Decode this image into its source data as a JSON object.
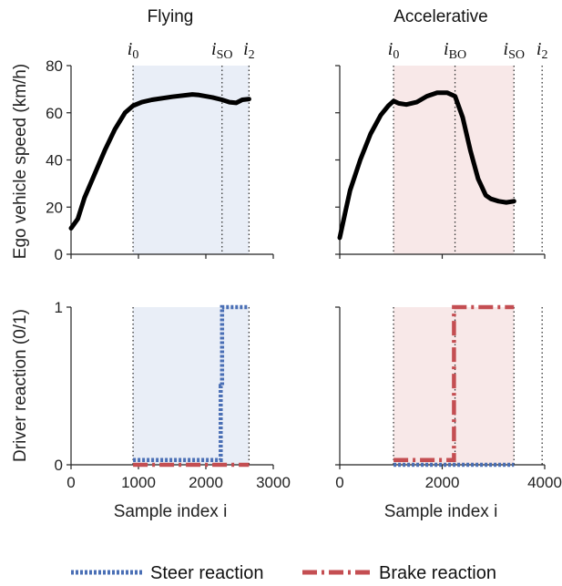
{
  "colors": {
    "speed_line": "#000000",
    "steer": "#4a6fb5",
    "brake": "#c44e52",
    "flying_shade": "#e9eef7",
    "accel_shade": "#f8e8e8",
    "event_line": "#333333"
  },
  "chart_data": [
    {
      "type": "line",
      "title": "Flying",
      "xlabel": "",
      "ylabel": "Ego vehicle speed (km/h)",
      "xlim": [
        0,
        3000
      ],
      "ylim": [
        0,
        80
      ],
      "y_ticks": [
        "0",
        "20",
        "40",
        "60",
        "80"
      ],
      "shaded_region": [
        920,
        2640
      ],
      "events": [
        {
          "base": "i",
          "sub": "0",
          "x": 920
        },
        {
          "base": "i",
          "sub": "SO",
          "x": 2240
        },
        {
          "base": "i",
          "sub": "2",
          "x": 2640
        }
      ],
      "series": [
        {
          "x": [
            0,
            100,
            200,
            350,
            500,
            650,
            800,
            920,
            1050,
            1200,
            1500,
            1800,
            1900,
            2100,
            2240,
            2350,
            2450,
            2540,
            2640
          ],
          "values": [
            11,
            15,
            24,
            34,
            44,
            53,
            60,
            63,
            64.5,
            65.5,
            66.8,
            67.8,
            67.5,
            66.5,
            65.5,
            64.5,
            64.2,
            65.5,
            65.8
          ]
        }
      ]
    },
    {
      "type": "line",
      "title": "Accelerative",
      "xlabel": "",
      "ylabel": "",
      "xlim": [
        0,
        4000
      ],
      "ylim": [
        0,
        80
      ],
      "y_ticks": [],
      "shaded_region": [
        1050,
        3400
      ],
      "events": [
        {
          "base": "i",
          "sub": "0",
          "x": 1050
        },
        {
          "base": "i",
          "sub": "BO",
          "x": 2250
        },
        {
          "base": "i",
          "sub": "SO",
          "x": 3400
        },
        {
          "base": "i",
          "sub": "2",
          "x": 3950
        }
      ],
      "series": [
        {
          "x": [
            0,
            100,
            200,
            400,
            600,
            800,
            950,
            1050,
            1150,
            1300,
            1500,
            1700,
            1900,
            2100,
            2250,
            2400,
            2550,
            2700,
            2850,
            2950,
            3100,
            3250,
            3400
          ],
          "values": [
            7,
            17,
            27,
            40,
            51,
            59,
            63,
            65,
            64,
            63.5,
            64.5,
            67,
            68.5,
            68.5,
            67,
            58,
            44,
            32,
            25,
            23.5,
            22.5,
            22,
            22.5
          ]
        }
      ]
    },
    {
      "type": "line",
      "title": "",
      "xlabel": "Sample index i",
      "ylabel": "Driver reaction (0/1)",
      "xlim": [
        0,
        3000
      ],
      "ylim": [
        0,
        1
      ],
      "x_ticks": [
        "0",
        "1000",
        "2000",
        "3000"
      ],
      "y_ticks": [
        "0",
        "1"
      ],
      "shaded_region": [
        920,
        2640
      ],
      "events": [
        {
          "x": 920
        },
        {
          "x": 2640
        }
      ],
      "series": [
        {
          "name": "Steer reaction",
          "x": [
            920,
            2220,
            2220,
            2240,
            2240,
            2640
          ],
          "values": [
            0.03,
            0.03,
            0.5,
            0.5,
            1,
            1
          ]
        },
        {
          "name": "Brake reaction",
          "x": [
            920,
            2640
          ],
          "values": [
            0,
            0
          ]
        }
      ]
    },
    {
      "type": "line",
      "title": "",
      "xlabel": "Sample index i",
      "ylabel": "",
      "xlim": [
        0,
        4000
      ],
      "ylim": [
        0,
        1
      ],
      "x_ticks": [
        "0",
        "2000",
        "4000"
      ],
      "y_ticks": [],
      "shaded_region": [
        1050,
        3400
      ],
      "events": [
        {
          "x": 1050
        },
        {
          "x": 2250
        },
        {
          "x": 3400
        },
        {
          "x": 3950
        }
      ],
      "series": [
        {
          "name": "Steer reaction",
          "x": [
            1050,
            3400
          ],
          "values": [
            0,
            0
          ]
        },
        {
          "name": "Brake reaction",
          "x": [
            1050,
            2230,
            2230,
            3400
          ],
          "values": [
            0.03,
            0.03,
            1,
            1
          ]
        }
      ]
    }
  ],
  "legend": {
    "placement": "bottom",
    "entries": [
      {
        "label": "Steer reaction",
        "style": "dotted"
      },
      {
        "label": "Brake reaction",
        "style": "dashdot"
      }
    ]
  }
}
